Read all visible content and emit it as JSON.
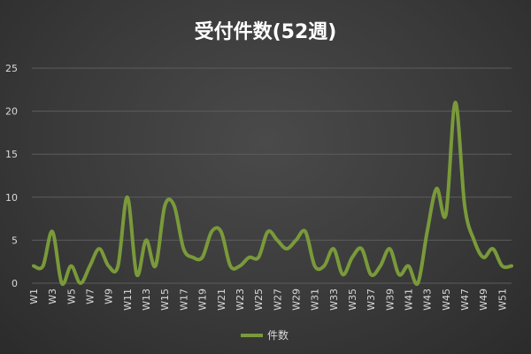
{
  "chart_data": {
    "type": "line",
    "title": "受付件数(52週)",
    "xlabel": "",
    "ylabel": "",
    "ylim": [
      0,
      25
    ],
    "yticks": [
      0,
      5,
      10,
      15,
      20,
      25
    ],
    "x": [
      "W1",
      "W2",
      "W3",
      "W4",
      "W5",
      "W6",
      "W7",
      "W8",
      "W9",
      "W10",
      "W11",
      "W12",
      "W13",
      "W14",
      "W15",
      "W16",
      "W17",
      "W18",
      "W19",
      "W20",
      "W21",
      "W22",
      "W23",
      "W24",
      "W25",
      "W26",
      "W27",
      "W28",
      "W29",
      "W30",
      "W31",
      "W32",
      "W33",
      "W34",
      "W35",
      "W36",
      "W37",
      "W38",
      "W39",
      "W40",
      "W41",
      "W42",
      "W43",
      "W44",
      "W45",
      "W46",
      "W47",
      "W48",
      "W49",
      "W50",
      "W51",
      "W52"
    ],
    "xtick_labels": [
      "W1",
      "W3",
      "W5",
      "W7",
      "W9",
      "W11",
      "W13",
      "W15",
      "W17",
      "W19",
      "W21",
      "W23",
      "W25",
      "W27",
      "W29",
      "W31",
      "W33",
      "W35",
      "W37",
      "W39",
      "W41",
      "W43",
      "W45",
      "W47",
      "W49",
      "W51"
    ],
    "series": [
      {
        "name": "件数",
        "color": "#7a9a3a",
        "values": [
          2,
          2,
          6,
          0,
          2,
          0,
          2,
          4,
          2,
          2,
          10,
          1,
          5,
          2,
          9,
          9,
          4,
          3,
          3,
          6,
          6,
          2,
          2,
          3,
          3,
          6,
          5,
          4,
          5,
          6,
          2,
          2,
          4,
          1,
          3,
          4,
          1,
          2,
          4,
          1,
          2,
          0,
          6,
          11,
          8,
          21,
          9,
          5,
          3,
          4,
          2,
          2
        ]
      }
    ],
    "grid": true,
    "legend_position": "bottom"
  }
}
